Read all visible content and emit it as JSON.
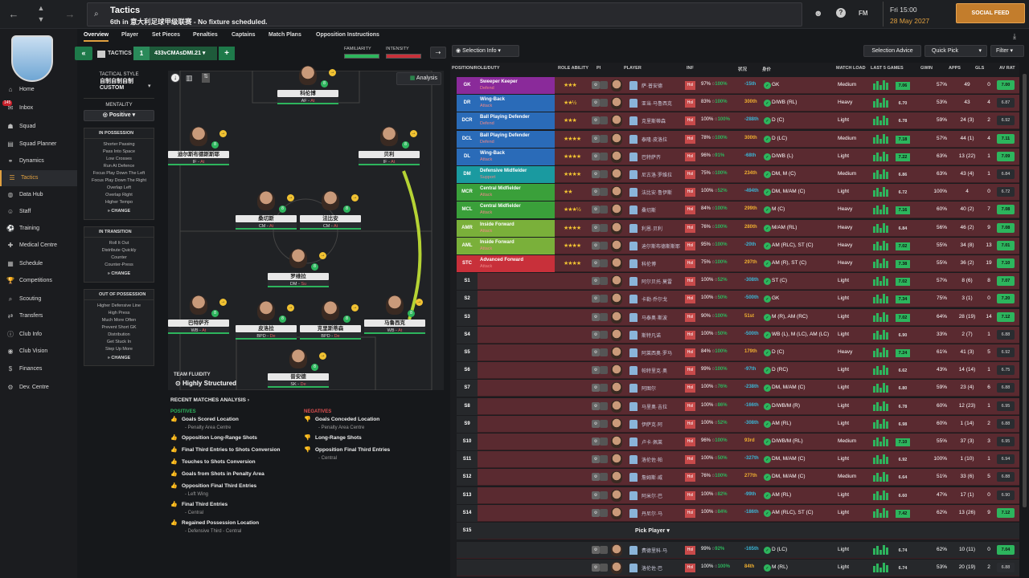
{
  "topbar": {
    "title": "Tactics",
    "subtitle": "6th in 意大利足球甲级联赛 - No fixture scheduled.",
    "fm": "FM",
    "time": "Fri 15:00",
    "date": "28 May 2027",
    "social": "SOCIAL FEED"
  },
  "sidebar": {
    "badge": "145",
    "items": [
      "Home",
      "Inbox",
      "Squad",
      "Squad Planner",
      "Dynamics",
      "Tactics",
      "Data Hub",
      "Staff",
      "Training",
      "Medical Centre",
      "Schedule",
      "Competitions",
      "Scouting",
      "Transfers",
      "Club Info",
      "Club Vision",
      "Finances",
      "Dev. Centre"
    ]
  },
  "tabs": [
    "Overview",
    "Player",
    "Set Pieces",
    "Penalties",
    "Captains",
    "Match Plans",
    "Opposition Instructions"
  ],
  "tactic": {
    "label": "TACTICS",
    "num": "1",
    "name": "433vCMAsDMI.21",
    "familiarity": "FAMILIARITY",
    "intensity": "INTENSITY",
    "selection_info": "Selection Info",
    "selection_advice": "Selection Advice",
    "quick_pick": "Quick Pick",
    "filter": "Filter",
    "analysis": "Analysis"
  },
  "style": {
    "label": "TACTICAL STYLE",
    "value": "自制自制自制CUSTOM",
    "mentality_label": "MENTALITY",
    "mentality": "Positive"
  },
  "in_possession": {
    "title": "IN POSSESSION",
    "lines": [
      "Shorter Passing",
      "Pass Into Space",
      "Low Crosses",
      "Run At Defence",
      "Focus Play Down The Left",
      "Focus Play Down The Right",
      "Overlap Left",
      "Overlap Right",
      "Higher Tempo"
    ],
    "change": "CHANGE"
  },
  "in_transition": {
    "title": "IN TRANSITION",
    "lines": [
      "Roll It Out",
      "Distribute Quickly",
      "Counter",
      "Counter-Press"
    ],
    "change": "CHANGE"
  },
  "out_possession": {
    "title": "OUT OF POSSESSION",
    "lines": [
      "Higher Defensive Line",
      "High Press",
      "Much More Often",
      "Prevent Short GK",
      "Distribution",
      "Get Stuck In",
      "Step Up More"
    ],
    "change": "CHANGE"
  },
  "pitch_players": [
    {
      "name": "科伦博",
      "role": "AF",
      "duty": "At"
    },
    {
      "name": "迪尔斯布德斯斯耶",
      "role": "IF",
      "duty": "At"
    },
    {
      "name": "贝利",
      "role": "IF",
      "duty": "At"
    },
    {
      "name": "桑切斯",
      "role": "CM",
      "duty": "At"
    },
    {
      "name": "法比安",
      "role": "CM",
      "duty": "At"
    },
    {
      "name": "罗维拉",
      "role": "DM",
      "duty": "Su"
    },
    {
      "name": "巴特萨齐",
      "role": "WB",
      "duty": "At"
    },
    {
      "name": "皮洛拉",
      "role": "BPD",
      "duty": "De"
    },
    {
      "name": "克里斯蒂森",
      "role": "BPD",
      "duty": "De"
    },
    {
      "name": "马鲁西克",
      "role": "WB",
      "duty": "At"
    },
    {
      "name": "普安德",
      "role": "SK",
      "duty": "De"
    }
  ],
  "fluidity": {
    "label": "TEAM FLUIDITY",
    "value": "Highly Structured"
  },
  "analysis": {
    "title": "RECENT MATCHES ANALYSIS",
    "positives_label": "POSITIVES",
    "negatives_label": "NEGATIVES",
    "positives": [
      {
        "t": "Goals Scored Location",
        "s": "- Penalty Area Centre"
      },
      {
        "t": "Opposition Long-Range Shots",
        "s": ""
      },
      {
        "t": "Final Third Entries to Shots Conversion",
        "s": ""
      },
      {
        "t": "Touches to Shots Conversion",
        "s": ""
      },
      {
        "t": "Goals from Shots in Penalty Area",
        "s": ""
      },
      {
        "t": "Opposition Final Third Entries",
        "s": "- Left Wing"
      },
      {
        "t": "Final Third Entries",
        "s": "- Central"
      },
      {
        "t": "Regained Possession Location",
        "s": "- Defensive Third - Central"
      }
    ],
    "negatives": [
      {
        "t": "Goals Conceded Location",
        "s": "- Penalty Area Centre"
      },
      {
        "t": "Long-Range Shots",
        "s": ""
      },
      {
        "t": "Opposition Final Third Entries",
        "s": "- Central"
      }
    ]
  },
  "table_headers": [
    "POSITION/ROLE/DUTY",
    "ROLE ABILITY",
    "PI",
    "PLAYER",
    "INF",
    "状况",
    "身价",
    "MATCH LOAD",
    "LAST 5 GAMES",
    "GWIN",
    "APPS",
    "GLS",
    "AV RAT"
  ],
  "rows": [
    {
      "pos": "GK",
      "color": "#8a2a9a",
      "role": "Sweeper Keeper",
      "duty": "Defend",
      "stars": "★★★",
      "pname": "萨·普安德",
      "cond": "97%",
      "sharp": "100%",
      "val": "-15th",
      "p2": "GK",
      "ml": "Medium",
      "avg": "7.06",
      "gw": "57%",
      "ap": "49",
      "gl": "0",
      "ar": "7.00",
      "hi": true
    },
    {
      "pos": "DR",
      "color": "#2a6bb8",
      "role": "Wing-Back",
      "duty": "Attack",
      "stars": "★★½",
      "pname": "亚当·马鲁西克",
      "cond": "83%",
      "sharp": "100%",
      "val": "300th",
      "p2": "D/WB (RL)",
      "ml": "Heavy",
      "avg": "6.70",
      "gw": "53%",
      "ap": "43",
      "gl": "4",
      "ar": "6.87",
      "hi": false
    },
    {
      "pos": "DCR",
      "color": "#2a6bb8",
      "role": "Ball Playing Defender",
      "duty": "Defend",
      "stars": "★★★",
      "pname": "克里斯蒂森",
      "cond": "100%",
      "sharp": "100%",
      "val": "-288th",
      "p2": "D (C)",
      "ml": "Light",
      "avg": "6.78",
      "gw": "59%",
      "ap": "24 (3)",
      "gl": "2",
      "ar": "6.92",
      "hi": false
    },
    {
      "pos": "DCL",
      "color": "#2a6bb8",
      "role": "Ball Playing Defender",
      "duty": "Defend",
      "stars": "★★★★",
      "pname": "泰隆·皮洛拉",
      "cond": "78%",
      "sharp": "100%",
      "val": "300th",
      "p2": "D (LC)",
      "ml": "Medium",
      "avg": "7.18",
      "gw": "57%",
      "ap": "44 (1)",
      "gl": "4",
      "ar": "7.11",
      "hi": true
    },
    {
      "pos": "DL",
      "color": "#2a6bb8",
      "role": "Wing-Back",
      "duty": "Attack",
      "stars": "★★★★",
      "pname": "巴特萨齐",
      "cond": "96%",
      "sharp": "91%",
      "val": "-68th",
      "p2": "D/WB (L)",
      "ml": "Light",
      "avg": "7.22",
      "gw": "63%",
      "ap": "13 (22)",
      "gl": "1",
      "ar": "7.09",
      "hi": true
    },
    {
      "pos": "DM",
      "color": "#1a9aa0",
      "role": "Defensive Midfielder",
      "duty": "Support",
      "stars": "★★★★",
      "pname": "尼古洛·罗维拉",
      "cond": "75%",
      "sharp": "100%",
      "val": "234th",
      "p2": "DM, M (C)",
      "ml": "Medium",
      "avg": "6.86",
      "gw": "63%",
      "ap": "43 (4)",
      "gl": "1",
      "ar": "6.84",
      "hi": false
    },
    {
      "pos": "MCR",
      "color": "#3aa03a",
      "role": "Central Midfielder",
      "duty": "Attack",
      "stars": "★★",
      "pname": "法比安·鲁伊斯",
      "cond": "100%",
      "sharp": "52%",
      "val": "-494th",
      "p2": "DM, M/AM (C)",
      "ml": "Light",
      "avg": "6.72",
      "gw": "100%",
      "ap": "4",
      "gl": "0",
      "ar": "6.72",
      "hi": false
    },
    {
      "pos": "MCL",
      "color": "#3aa03a",
      "role": "Central Midfielder",
      "duty": "Attack",
      "stars": "★★★½",
      "pname": "桑切斯",
      "cond": "84%",
      "sharp": "100%",
      "val": "299th",
      "p2": "M (C)",
      "ml": "Heavy",
      "avg": "7.16",
      "gw": "60%",
      "ap": "40 (2)",
      "gl": "7",
      "ar": "7.08",
      "hi": true
    },
    {
      "pos": "AMR",
      "color": "#7ab03a",
      "role": "Inside Forward",
      "duty": "Attack",
      "stars": "★★★★",
      "pname": "利恩·贝利",
      "cond": "76%",
      "sharp": "100%",
      "val": "280th",
      "p2": "M/AM (RL)",
      "ml": "Heavy",
      "avg": "6.84",
      "gw": "56%",
      "ap": "46 (2)",
      "gl": "9",
      "ar": "7.08",
      "hi": true
    },
    {
      "pos": "AML",
      "color": "#7ab03a",
      "role": "Inside Forward",
      "duty": "Attack",
      "stars": "★★★★",
      "pname": "迪尔斯布德斯斯耶",
      "cond": "95%",
      "sharp": "100%",
      "val": "-20th",
      "p2": "AM (RLC), ST (C)",
      "ml": "Heavy",
      "avg": "7.02",
      "gw": "55%",
      "ap": "34 (8)",
      "gl": "13",
      "ar": "7.01",
      "hi": true
    },
    {
      "pos": "STC",
      "color": "#c8303a",
      "role": "Advanced Forward",
      "duty": "Attack",
      "stars": "★★★★",
      "pname": "科伦博",
      "cond": "75%",
      "sharp": "100%",
      "val": "297th",
      "p2": "AM (R), ST (C)",
      "ml": "Heavy",
      "avg": "7.38",
      "gw": "55%",
      "ap": "36 (2)",
      "gl": "19",
      "ar": "7.10",
      "hi": true
    },
    {
      "pos": "S1",
      "pname": "阿尔贝托·莫雷",
      "cond": "100%",
      "sharp": "52%",
      "val": "-308th",
      "p2": "ST (C)",
      "ml": "Light",
      "avg": "7.02",
      "gw": "57%",
      "ap": "8 (6)",
      "gl": "8",
      "ar": "7.07",
      "hi": true
    },
    {
      "pos": "S2",
      "pname": "卡勒·乔尔戈",
      "cond": "100%",
      "sharp": "50%",
      "val": "-500th",
      "p2": "GK",
      "ml": "Light",
      "avg": "7.34",
      "gw": "75%",
      "ap": "3 (1)",
      "gl": "0",
      "ar": "7.20",
      "hi": true
    },
    {
      "pos": "S3",
      "pname": "马泰奥·斯波",
      "cond": "90%",
      "sharp": "100%",
      "val": "51st",
      "p2": "M (R), AM (RC)",
      "ml": "Light",
      "avg": "7.02",
      "gw": "64%",
      "ap": "28 (19)",
      "gl": "14",
      "ar": "7.12",
      "hi": true
    },
    {
      "pos": "S4",
      "pname": "斯特凡诺",
      "cond": "100%",
      "sharp": "50%",
      "val": "-500th",
      "p2": "WB (L), M (LC), AM (LC)",
      "ml": "Light",
      "avg": "6.90",
      "gw": "33%",
      "ap": "2 (7)",
      "gl": "1",
      "ar": "6.88",
      "hi": false
    },
    {
      "pos": "S5",
      "pname": "阿莱西奥·罗马",
      "cond": "84%",
      "sharp": "100%",
      "val": "179th",
      "p2": "D (C)",
      "ml": "Heavy",
      "avg": "7.24",
      "gw": "61%",
      "ap": "41 (3)",
      "gl": "5",
      "ar": "6.92",
      "hi": false
    },
    {
      "pos": "S6",
      "pname": "帕特里克·奥",
      "cond": "99%",
      "sharp": "100%",
      "val": "-97th",
      "p2": "D (RC)",
      "ml": "Light",
      "avg": "6.62",
      "gw": "43%",
      "ap": "14 (14)",
      "gl": "1",
      "ar": "6.75",
      "hi": false
    },
    {
      "pos": "S7",
      "pname": "阿图尔",
      "cond": "100%",
      "sharp": "76%",
      "val": "-238th",
      "p2": "DM, M/AM (C)",
      "ml": "Light",
      "avg": "6.80",
      "gw": "59%",
      "ap": "23 (4)",
      "gl": "6",
      "ar": "6.88",
      "hi": false
    },
    {
      "pos": "S8",
      "pname": "马里奥·吉拉",
      "cond": "100%",
      "sharp": "86%",
      "val": "-166th",
      "p2": "D/WB/M (R)",
      "ml": "Light",
      "avg": "6.78",
      "gw": "60%",
      "ap": "12 (23)",
      "gl": "1",
      "ar": "6.95",
      "hi": false
    },
    {
      "pos": "S9",
      "pname": "伊萨克·阿",
      "cond": "100%",
      "sharp": "52%",
      "val": "-308th",
      "p2": "AM (RL)",
      "ml": "Light",
      "avg": "6.98",
      "gw": "60%",
      "ap": "1 (14)",
      "gl": "2",
      "ar": "6.88",
      "hi": false
    },
    {
      "pos": "S10",
      "pname": "卢卡·佩莱",
      "cond": "96%",
      "sharp": "100%",
      "val": "93rd",
      "p2": "D/WB/M (RL)",
      "ml": "Medium",
      "avg": "7.10",
      "gw": "55%",
      "ap": "37 (3)",
      "gl": "3",
      "ar": "6.95",
      "hi": false
    },
    {
      "pos": "S11",
      "pname": "洛伦佐·帕",
      "cond": "100%",
      "sharp": "50%",
      "val": "-327th",
      "p2": "DM, M/AM (C)",
      "ml": "Light",
      "avg": "6.92",
      "gw": "100%",
      "ap": "1 (10)",
      "gl": "1",
      "ar": "6.94",
      "hi": false
    },
    {
      "pos": "S12",
      "pname": "詹姆斯·威",
      "cond": "76%",
      "sharp": "100%",
      "val": "277th",
      "p2": "DM, M/AM (C)",
      "ml": "Medium",
      "avg": "6.64",
      "gw": "51%",
      "ap": "33 (6)",
      "gl": "5",
      "ar": "6.88",
      "hi": false
    },
    {
      "pos": "S13",
      "pname": "阿米尔·巴",
      "cond": "100%",
      "sharp": "82%",
      "val": "-99th",
      "p2": "AM (RL)",
      "ml": "Light",
      "avg": "6.60",
      "gw": "47%",
      "ap": "17 (1)",
      "gl": "0",
      "ar": "6.90",
      "hi": false
    },
    {
      "pos": "S14",
      "pname": "丹尼尔·马",
      "cond": "100%",
      "sharp": "84%",
      "val": "-186th",
      "p2": "AM (RLC), ST (C)",
      "ml": "Light",
      "avg": "7.42",
      "gw": "62%",
      "ap": "13 (26)",
      "gl": "9",
      "ar": "7.12",
      "hi": true
    }
  ],
  "s15": {
    "pos": "S15",
    "pick": "Pick Player"
  },
  "reserves": [
    {
      "pname": "费德里科·马",
      "cond": "99%",
      "sharp": "92%",
      "val": "-165th",
      "p2": "D (LC)",
      "ml": "Light",
      "avg": "6.74",
      "gw": "62%",
      "ap": "10 (11)",
      "gl": "0",
      "ar": "7.04"
    },
    {
      "pname": "洛伦佐·巴",
      "cond": "100%",
      "sharp": "100%",
      "val": "84th",
      "p2": "M (RL)",
      "ml": "Light",
      "avg": "6.74",
      "gw": "53%",
      "ap": "20 (19)",
      "gl": "2",
      "ar": "6.88"
    }
  ]
}
